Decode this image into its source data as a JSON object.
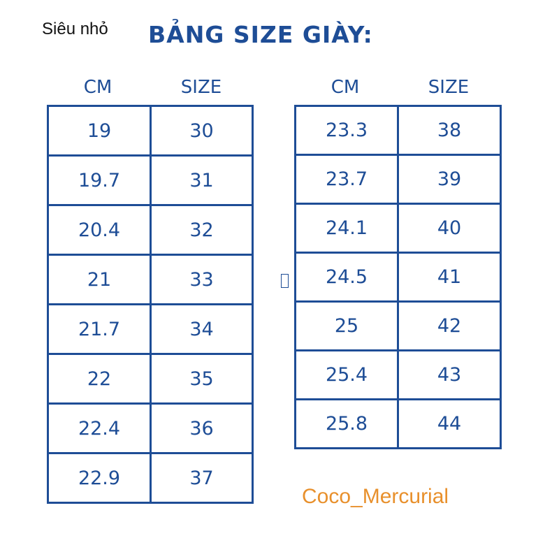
{
  "header": {
    "prefix": "Siêu nhỏ",
    "title": "BẢNG SIZE GIÀY:"
  },
  "left_table": {
    "headers": {
      "cm": "CM",
      "size": "SIZE"
    },
    "rows": [
      {
        "cm": "19",
        "size": "30"
      },
      {
        "cm": "19.7",
        "size": "31"
      },
      {
        "cm": "20.4",
        "size": "32"
      },
      {
        "cm": "21",
        "size": "33"
      },
      {
        "cm": "21.7",
        "size": "34"
      },
      {
        "cm": "22",
        "size": "35"
      },
      {
        "cm": "22.4",
        "size": "36"
      },
      {
        "cm": "22.9",
        "size": "37"
      }
    ]
  },
  "right_table": {
    "headers": {
      "cm": "CM",
      "size": "SIZE"
    },
    "rows": [
      {
        "cm": "23.3",
        "size": "38"
      },
      {
        "cm": "23.7",
        "size": "39"
      },
      {
        "cm": "24.1",
        "size": "40"
      },
      {
        "cm": "24.5",
        "size": "41"
      },
      {
        "cm": "25",
        "size": "42"
      },
      {
        "cm": "25.4",
        "size": "43"
      },
      {
        "cm": "25.8",
        "size": "44"
      }
    ]
  },
  "watermark": "Coco_Mercurial",
  "colors": {
    "table_blue": "#1e4d96",
    "watermark_orange": "#e8902c",
    "text_black": "#111111"
  }
}
